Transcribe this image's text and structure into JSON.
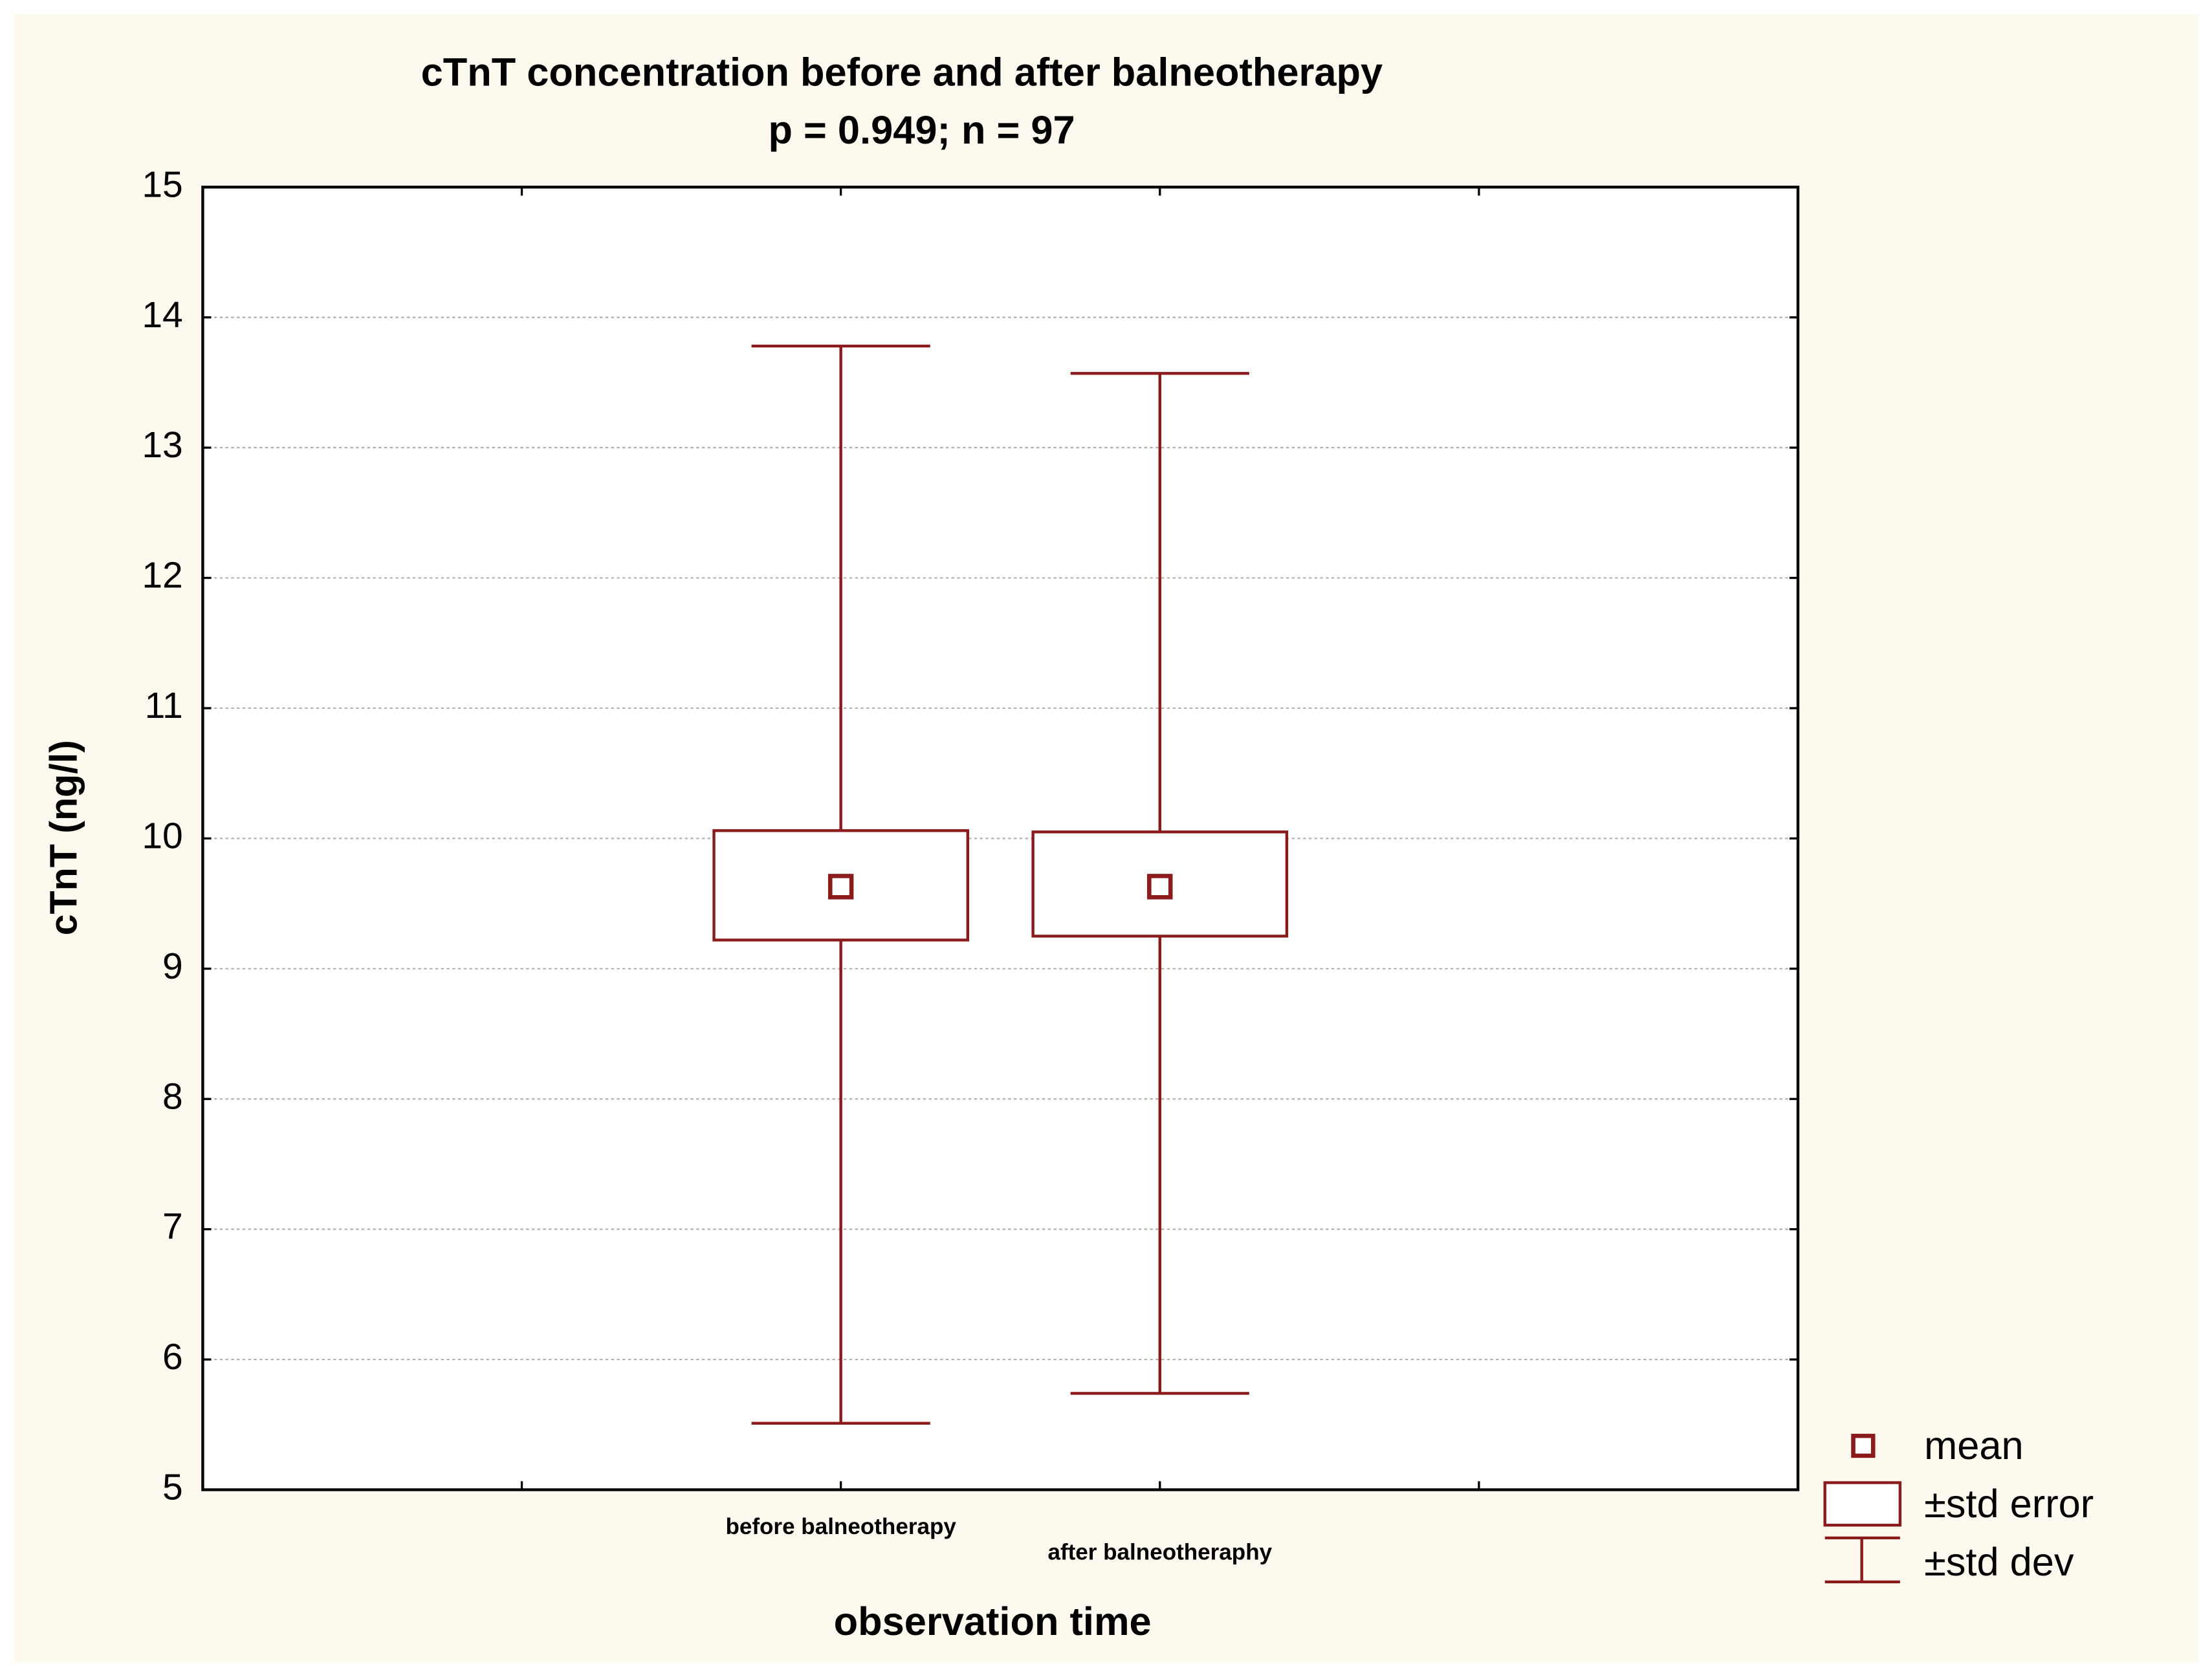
{
  "chart_data": {
    "type": "box",
    "title": "cTnT concentration before and after balneotherapy",
    "subtitle": "p = 0.949; n = 97",
    "x_label": "observation time",
    "y_label": "cTnT (ng/l)",
    "categories": [
      null,
      "before balneotherapy",
      "after balneotheraphy",
      null
    ],
    "mean": [
      null,
      9.63,
      null,
      null
    ],
    "se_low": [
      null,
      9.22,
      9.25,
      null
    ],
    "se_high": [
      null,
      10.06,
      10.05,
      null
    ],
    "sd_low": [
      null,
      5.51,
      5.74,
      null
    ],
    "sd_high": [
      null,
      13.78,
      13.57,
      null
    ],
    "mean_after": [
      null,
      null,
      9.63,
      null
    ],
    "color": "#8b1a1a",
    "ylim": [
      5,
      15
    ],
    "yticks": [
      5,
      6,
      7,
      8,
      9,
      10,
      11,
      12,
      13,
      14,
      15
    ],
    "grid": true,
    "legend": [
      "mean",
      "±std error",
      "±std dev"
    ]
  }
}
